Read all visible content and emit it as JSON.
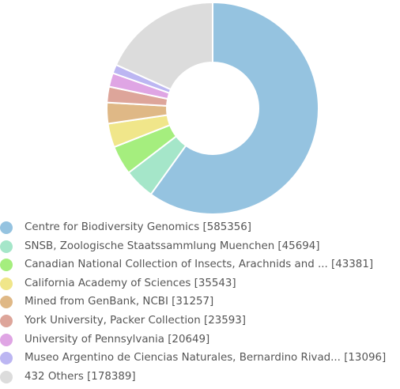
{
  "chart_data": {
    "type": "pie",
    "donut": true,
    "legend": "bottom",
    "slices": [
      {
        "label": "Centre for Biodiversity Genomics [585356]",
        "value": 585356,
        "color": "#95c3e0"
      },
      {
        "label": "SNSB, Zoologische Staatssammlung Muenchen [45694]",
        "value": 45694,
        "color": "#a5e6c9"
      },
      {
        "label": "Canadian National Collection of Insects, Arachnids and ... [43381]",
        "value": 43381,
        "color": "#a5ee7e"
      },
      {
        "label": "California Academy of Sciences [35543]",
        "value": 35543,
        "color": "#f0e68a"
      },
      {
        "label": "Mined from GenBank, NCBI [31257]",
        "value": 31257,
        "color": "#dfb886"
      },
      {
        "label": "York University, Packer Collection [23593]",
        "value": 23593,
        "color": "#dda59a"
      },
      {
        "label": "University of Pennsylvania [20649]",
        "value": 20649,
        "color": "#dfa5e4"
      },
      {
        "label": "Museo Argentino de Ciencias Naturales, Bernardino Rivad... [13096]",
        "value": 13096,
        "color": "#bcb6f2"
      },
      {
        "label": "432 Others [178389]",
        "value": 178389,
        "color": "#dcdcdc"
      }
    ]
  }
}
